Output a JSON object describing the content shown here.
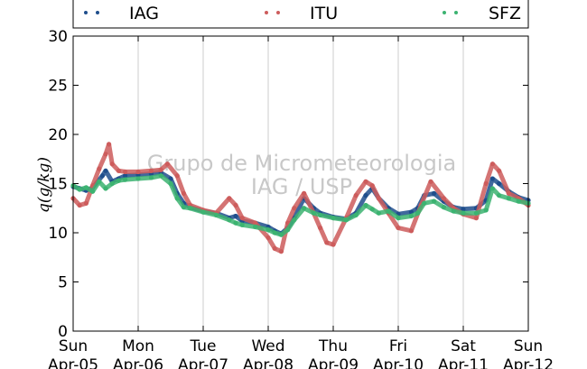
{
  "chart_data": {
    "type": "scatter",
    "ylabel": "q(g/kg)",
    "ylim": [
      0,
      30
    ],
    "y_ticks": [
      "0",
      "5",
      "10",
      "15",
      "20",
      "25",
      "30"
    ],
    "x_range_days": [
      0,
      7
    ],
    "x_ticks": [
      {
        "day": "Sun",
        "date": "Apr-05"
      },
      {
        "day": "Mon",
        "date": "Apr-06"
      },
      {
        "day": "Tue",
        "date": "Apr-07"
      },
      {
        "day": "Wed",
        "date": "Apr-08"
      },
      {
        "day": "Thu",
        "date": "Apr-09"
      },
      {
        "day": "Fri",
        "date": "Apr-10"
      },
      {
        "day": "Sat",
        "date": "Apr-11"
      },
      {
        "day": "Sun",
        "date": "Apr-12"
      }
    ],
    "grid": "vertical",
    "legend_position": "top",
    "watermark": [
      "Grupo de Micrometeorologia",
      "IAG / USP"
    ],
    "series": [
      {
        "name": "IAG",
        "color": "#1f4e8c",
        "x": [
          0,
          0.1,
          0.2,
          0.3,
          0.45,
          0.5,
          0.6,
          0.7,
          0.8,
          1.0,
          1.2,
          1.35,
          1.5,
          1.6,
          1.7,
          1.8,
          2.0,
          2.2,
          2.4,
          2.5,
          2.6,
          2.8,
          3.0,
          3.1,
          3.2,
          3.3,
          3.4,
          3.55,
          3.7,
          3.8,
          4.0,
          4.2,
          4.35,
          4.5,
          4.6,
          4.7,
          4.85,
          5.0,
          5.2,
          5.3,
          5.4,
          5.55,
          5.7,
          5.85,
          6.0,
          6.2,
          6.35,
          6.45,
          6.55,
          6.7,
          6.85,
          7.0
        ],
        "y": [
          14.7,
          14.5,
          14.3,
          14.6,
          15.8,
          16.3,
          15.2,
          15.5,
          15.8,
          15.9,
          16.0,
          16.1,
          15.5,
          14.0,
          13.0,
          12.6,
          12.2,
          12.0,
          11.5,
          11.7,
          11.2,
          11.0,
          10.6,
          10.2,
          9.9,
          10.5,
          11.5,
          13.5,
          12.5,
          12.0,
          11.6,
          11.4,
          12.0,
          13.8,
          14.5,
          13.5,
          12.5,
          11.9,
          12.1,
          12.5,
          13.8,
          14.0,
          13.2,
          12.6,
          12.4,
          12.5,
          13.3,
          15.5,
          15.0,
          14.2,
          13.6,
          13.3
        ]
      },
      {
        "name": "ITU",
        "color": "#cd5c5c",
        "x": [
          0,
          0.1,
          0.2,
          0.3,
          0.4,
          0.5,
          0.55,
          0.6,
          0.7,
          0.8,
          1.0,
          1.2,
          1.35,
          1.45,
          1.6,
          1.7,
          1.8,
          2.0,
          2.2,
          2.4,
          2.5,
          2.6,
          2.8,
          3.0,
          3.1,
          3.2,
          3.3,
          3.4,
          3.55,
          3.7,
          3.8,
          3.9,
          4.0,
          4.2,
          4.35,
          4.5,
          4.6,
          4.7,
          4.85,
          5.0,
          5.2,
          5.35,
          5.5,
          5.7,
          5.85,
          6.0,
          6.2,
          6.35,
          6.45,
          6.55,
          6.7,
          6.85,
          7.0
        ],
        "y": [
          13.5,
          12.8,
          13.0,
          14.8,
          16.5,
          18.0,
          19.0,
          17.0,
          16.3,
          16.2,
          16.2,
          16.3,
          16.4,
          17.0,
          15.8,
          14.0,
          12.8,
          12.3,
          12.0,
          13.5,
          12.8,
          11.5,
          11.0,
          9.5,
          8.4,
          8.1,
          11.0,
          12.5,
          14.0,
          12.0,
          10.5,
          9.0,
          8.8,
          11.5,
          13.8,
          15.2,
          14.8,
          13.5,
          12.0,
          10.5,
          10.2,
          12.8,
          15.2,
          13.5,
          12.5,
          11.9,
          11.5,
          15.0,
          17.0,
          16.3,
          14.0,
          13.5,
          12.8
        ]
      },
      {
        "name": "SFZ",
        "color": "#3cb371",
        "x": [
          0,
          0.1,
          0.2,
          0.3,
          0.4,
          0.5,
          0.6,
          0.7,
          0.8,
          1.0,
          1.2,
          1.35,
          1.5,
          1.6,
          1.7,
          1.8,
          2.0,
          2.2,
          2.4,
          2.5,
          2.6,
          2.8,
          3.0,
          3.1,
          3.2,
          3.3,
          3.4,
          3.55,
          3.7,
          3.8,
          4.0,
          4.2,
          4.35,
          4.5,
          4.6,
          4.7,
          4.85,
          5.0,
          5.2,
          5.3,
          5.4,
          5.55,
          5.7,
          5.85,
          6.0,
          6.2,
          6.35,
          6.45,
          6.55,
          6.7,
          6.85,
          7.0
        ],
        "y": [
          14.8,
          14.4,
          14.6,
          14.2,
          15.2,
          14.5,
          15.0,
          15.3,
          15.4,
          15.5,
          15.6,
          15.8,
          15.0,
          13.5,
          12.6,
          12.5,
          12.1,
          11.8,
          11.3,
          11.0,
          10.8,
          10.6,
          10.3,
          10.0,
          9.8,
          10.3,
          11.3,
          12.5,
          12.0,
          11.8,
          11.5,
          11.3,
          11.8,
          12.8,
          12.4,
          12.0,
          12.2,
          11.5,
          11.7,
          12.0,
          13.0,
          13.2,
          12.6,
          12.2,
          12.0,
          12.0,
          12.3,
          14.5,
          13.8,
          13.5,
          13.2,
          13.0
        ]
      }
    ]
  }
}
